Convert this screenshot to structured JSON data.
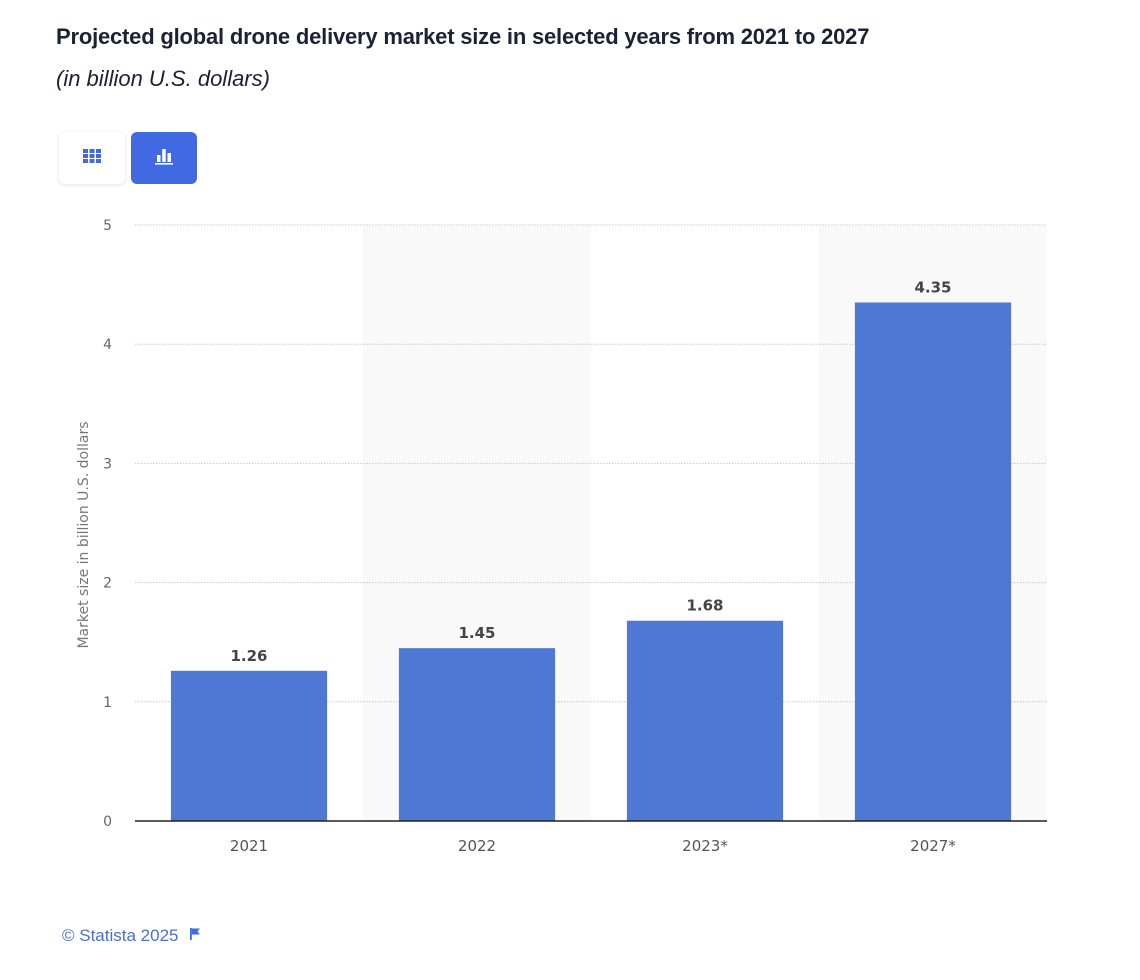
{
  "header": {
    "title": "Projected global drone delivery market size in selected years from 2021 to 2027",
    "subtitle": "(in billion U.S. dollars)"
  },
  "toolbar": {
    "table_view_icon": "grid-icon",
    "chart_view_icon": "bar-chart-icon",
    "active_view": "chart"
  },
  "colors": {
    "bar": "#4f77d4",
    "accent": "#4169e1",
    "footer": "#4a6fd0",
    "band": "#f9f9f9"
  },
  "chart_data": {
    "type": "bar",
    "title": "Projected global drone delivery market size in selected years from 2021 to 2027",
    "subtitle": "(in billion U.S. dollars)",
    "xlabel": "",
    "ylabel": "Market size in billion U.S. dollars",
    "categories": [
      "2021",
      "2022",
      "2023*",
      "2027*"
    ],
    "values": [
      1.26,
      1.45,
      1.68,
      4.35
    ],
    "data_labels": [
      "1.26",
      "1.45",
      "1.68",
      "4.35"
    ],
    "ylim": [
      0,
      5
    ],
    "yticks": [
      0,
      1,
      2,
      3,
      4,
      5
    ],
    "ytick_labels": [
      "0",
      "1",
      "2",
      "3",
      "4",
      "5"
    ],
    "grid": true,
    "legend": "none"
  },
  "footer": {
    "copyright": "© Statista 2025",
    "flag_icon": "flag-icon"
  }
}
